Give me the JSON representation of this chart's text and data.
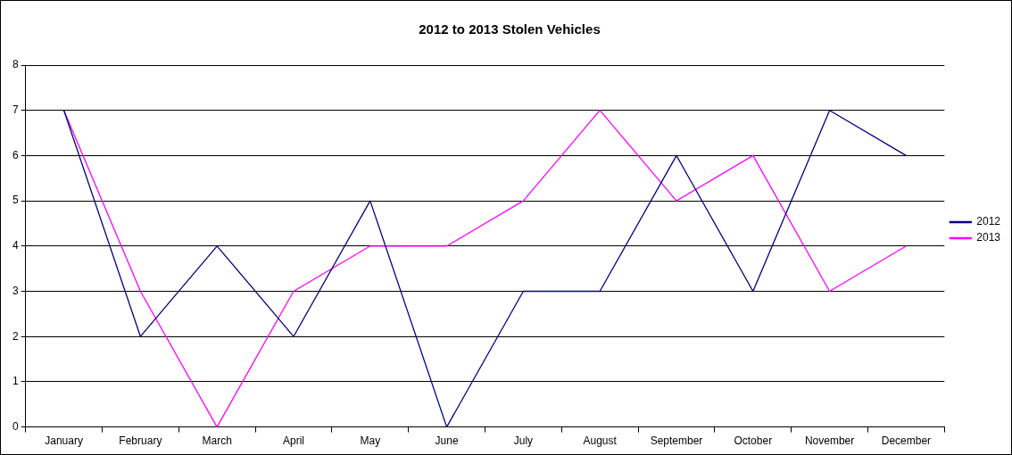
{
  "chart_data": {
    "type": "line",
    "title": "2012 to 2013 Stolen Vehicles",
    "categories": [
      "January",
      "February",
      "March",
      "April",
      "May",
      "June",
      "July",
      "August",
      "September",
      "October",
      "November",
      "December"
    ],
    "series": [
      {
        "name": "2012",
        "color": "#000080",
        "values": [
          7,
          2,
          4,
          2,
          5,
          0,
          3,
          3,
          6,
          3,
          7,
          6
        ]
      },
      {
        "name": "2013",
        "color": "#ff00ff",
        "values": [
          7,
          3,
          0,
          3,
          4,
          4,
          5,
          7,
          5,
          6,
          3,
          4
        ]
      }
    ],
    "ylim": [
      0,
      8
    ],
    "yticks": [
      0,
      1,
      2,
      3,
      4,
      5,
      6,
      7,
      8
    ],
    "grid": "y",
    "legend": "right",
    "marker": "none",
    "line_style": "solid"
  }
}
